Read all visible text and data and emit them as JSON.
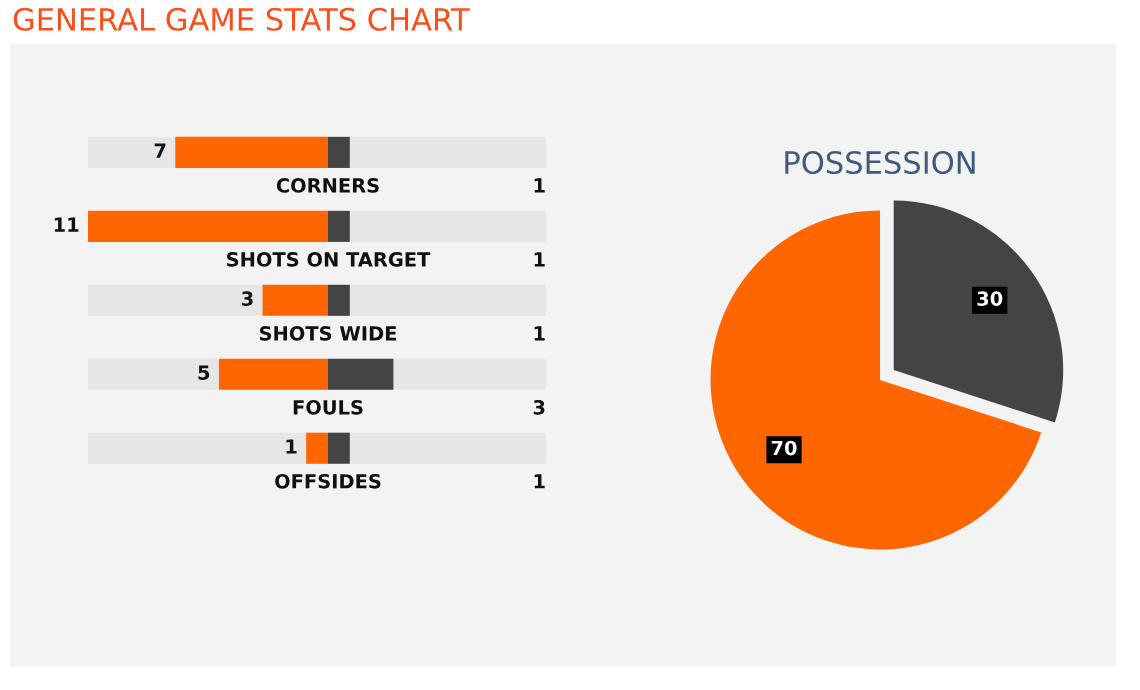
{
  "chart_data": [
    {
      "type": "bar",
      "orientation": "horizontal",
      "title": "GENERAL GAME STATS CHART",
      "categories": [
        "CORNERS",
        "SHOTS ON TARGET",
        "SHOTS WIDE",
        "FOULS",
        "OFFSIDES"
      ],
      "xlim": [
        11,
        0
      ],
      "series": [
        {
          "color": "#ff6600",
          "values": [
            7,
            11,
            3,
            5,
            1
          ]
        }
      ],
      "data_labels": true
    },
    {
      "type": "bar",
      "orientation": "horizontal",
      "categories": [
        null,
        null,
        null,
        null,
        null
      ],
      "xlim": [
        0,
        10
      ],
      "series": [
        {
          "color": "#444444",
          "values": [
            1,
            1,
            1,
            3,
            1
          ]
        }
      ],
      "data_labels": true
    },
    {
      "type": "pie",
      "title": "POSSESSION",
      "categories": [
        null,
        null
      ],
      "values": [
        70,
        30
      ],
      "colors": [
        "#ff6600",
        "#444444"
      ],
      "data_labels": true
    }
  ]
}
